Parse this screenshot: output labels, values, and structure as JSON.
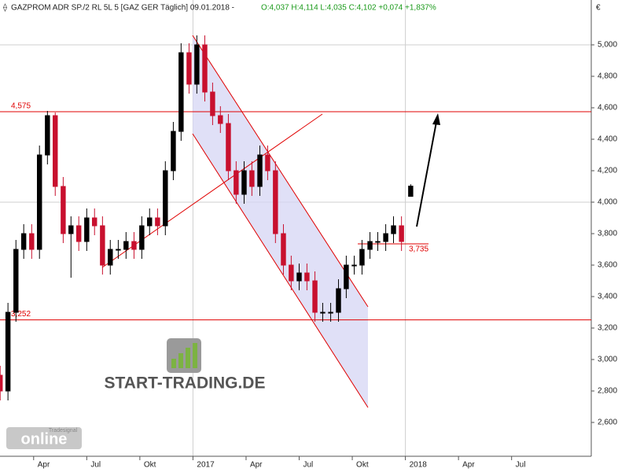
{
  "chart_data": {
    "type": "candlestick",
    "title": "GAZPROM ADR SP./2 RL 5L 5 [GAZ GER  Täglich] 09.01.2018 -",
    "subtitle": "O:4,037 H:4,114 L:4,035 C:4,102 +0,074 +1,837%",
    "currency": "€",
    "x": [
      1.11,
      1.55,
      2.0,
      2.44,
      2.89,
      3.33,
      3.78,
      4.22,
      4.67,
      5.11,
      5.55,
      6.0,
      6.44,
      6.89,
      7.33,
      7.78,
      8.22,
      8.67,
      9.11,
      9.55,
      10.0,
      10.44,
      10.89,
      11.33,
      11.78,
      12.22,
      12.67,
      13.11,
      13.55,
      14.0,
      14.44,
      14.89,
      15.33,
      15.78,
      16.22,
      16.66,
      17.11,
      17.55,
      18.0,
      18.44,
      18.89,
      19.33,
      19.78,
      20.22,
      20.66,
      21.11,
      21.55,
      22.0,
      22.44,
      22.89,
      23.33,
      23.78,
      24.3
    ],
    "open": [
      2.9,
      2.8,
      3.3,
      3.7,
      3.8,
      3.7,
      4.3,
      4.55,
      4.1,
      3.8,
      3.85,
      3.75,
      3.9,
      3.85,
      3.6,
      3.7,
      3.7,
      3.75,
      3.7,
      3.85,
      3.9,
      3.85,
      4.2,
      4.45,
      4.95,
      4.75,
      5.0,
      4.7,
      4.55,
      4.5,
      4.2,
      4.05,
      4.2,
      4.1,
      4.3,
      4.2,
      3.8,
      3.6,
      3.5,
      3.55,
      3.5,
      3.3,
      3.3,
      3.3,
      3.45,
      3.6,
      3.6,
      3.7,
      3.75,
      3.75,
      3.8,
      3.85,
      4.037
    ],
    "high": [
      2.96,
      3.36,
      3.76,
      3.86,
      3.86,
      4.36,
      4.58,
      4.57,
      4.16,
      3.91,
      3.91,
      3.96,
      3.96,
      3.91,
      3.76,
      3.76,
      3.81,
      3.81,
      3.91,
      3.96,
      3.96,
      4.26,
      4.51,
      5.01,
      5.01,
      5.06,
      5.06,
      4.76,
      4.61,
      4.56,
      4.26,
      4.26,
      4.26,
      4.36,
      4.36,
      4.26,
      3.86,
      3.66,
      3.61,
      3.61,
      3.56,
      3.36,
      3.36,
      3.51,
      3.66,
      3.66,
      3.76,
      3.81,
      3.81,
      3.86,
      3.91,
      3.91,
      4.114
    ],
    "low": [
      2.74,
      2.74,
      3.24,
      3.64,
      3.64,
      3.64,
      4.24,
      4.04,
      3.74,
      3.52,
      3.69,
      3.69,
      3.79,
      3.54,
      3.54,
      3.64,
      3.64,
      3.64,
      3.64,
      3.79,
      3.79,
      3.79,
      4.14,
      4.39,
      4.69,
      4.69,
      4.64,
      4.49,
      4.44,
      4.14,
      3.99,
      3.99,
      4.04,
      4.04,
      4.14,
      3.74,
      3.54,
      3.44,
      3.44,
      3.44,
      3.24,
      3.24,
      3.24,
      3.24,
      3.39,
      3.54,
      3.54,
      3.64,
      3.69,
      3.69,
      3.74,
      3.69,
      4.035
    ],
    "close": [
      2.8,
      3.3,
      3.7,
      3.8,
      3.7,
      4.3,
      4.55,
      4.1,
      3.8,
      3.85,
      3.75,
      3.9,
      3.85,
      3.6,
      3.7,
      3.7,
      3.75,
      3.7,
      3.85,
      3.9,
      3.85,
      4.2,
      4.45,
      4.95,
      4.75,
      5.0,
      4.7,
      4.55,
      4.5,
      4.2,
      4.05,
      4.2,
      4.1,
      4.3,
      4.2,
      3.8,
      3.6,
      3.5,
      3.55,
      3.5,
      3.3,
      3.3,
      3.3,
      3.45,
      3.6,
      3.6,
      3.7,
      3.75,
      3.75,
      3.8,
      3.85,
      3.75,
      4.102
    ],
    "up_color": "#000000",
    "down_color": "#c8102e",
    "xlim": [
      1.1,
      34.5
    ],
    "xticks": [
      {
        "value": 3,
        "label": "Apr"
      },
      {
        "value": 6,
        "label": "Jul"
      },
      {
        "value": 9,
        "label": "Okt"
      },
      {
        "value": 12,
        "label": "2017"
      },
      {
        "value": 15,
        "label": "Apr"
      },
      {
        "value": 18,
        "label": "Jul"
      },
      {
        "value": 21,
        "label": "Okt"
      },
      {
        "value": 24,
        "label": "2018"
      },
      {
        "value": 27,
        "label": "Apr"
      },
      {
        "value": 30,
        "label": "Jul"
      }
    ],
    "x_grid_lines": [
      12,
      24
    ],
    "ylim": [
      2.385,
      5.285
    ],
    "yticks": [
      {
        "value": 2.6,
        "label": "2,600"
      },
      {
        "value": 2.8,
        "label": "2,800"
      },
      {
        "value": 3.0,
        "label": "3,000"
      },
      {
        "value": 3.2,
        "label": "3,200"
      },
      {
        "value": 3.4,
        "label": "3,400"
      },
      {
        "value": 3.6,
        "label": "3,600"
      },
      {
        "value": 3.8,
        "label": "3,800"
      },
      {
        "value": 4.0,
        "label": "4,000"
      },
      {
        "value": 4.2,
        "label": "4,200"
      },
      {
        "value": 4.4,
        "label": "4,400"
      },
      {
        "value": 4.6,
        "label": "4,600"
      },
      {
        "value": 4.8,
        "label": "4,800"
      },
      {
        "value": 5.0,
        "label": "5,000"
      }
    ],
    "y_grid_lines": [
      4,
      5
    ],
    "levels": [
      {
        "value": 4.575,
        "label": "4,575"
      },
      {
        "value": 3.252,
        "label": "3,252"
      }
    ],
    "support": {
      "value": 3.735,
      "label": "3,735"
    },
    "watermark": "START-TRADING.DE",
    "brand": "online",
    "brand_small": "Tradesignal"
  }
}
